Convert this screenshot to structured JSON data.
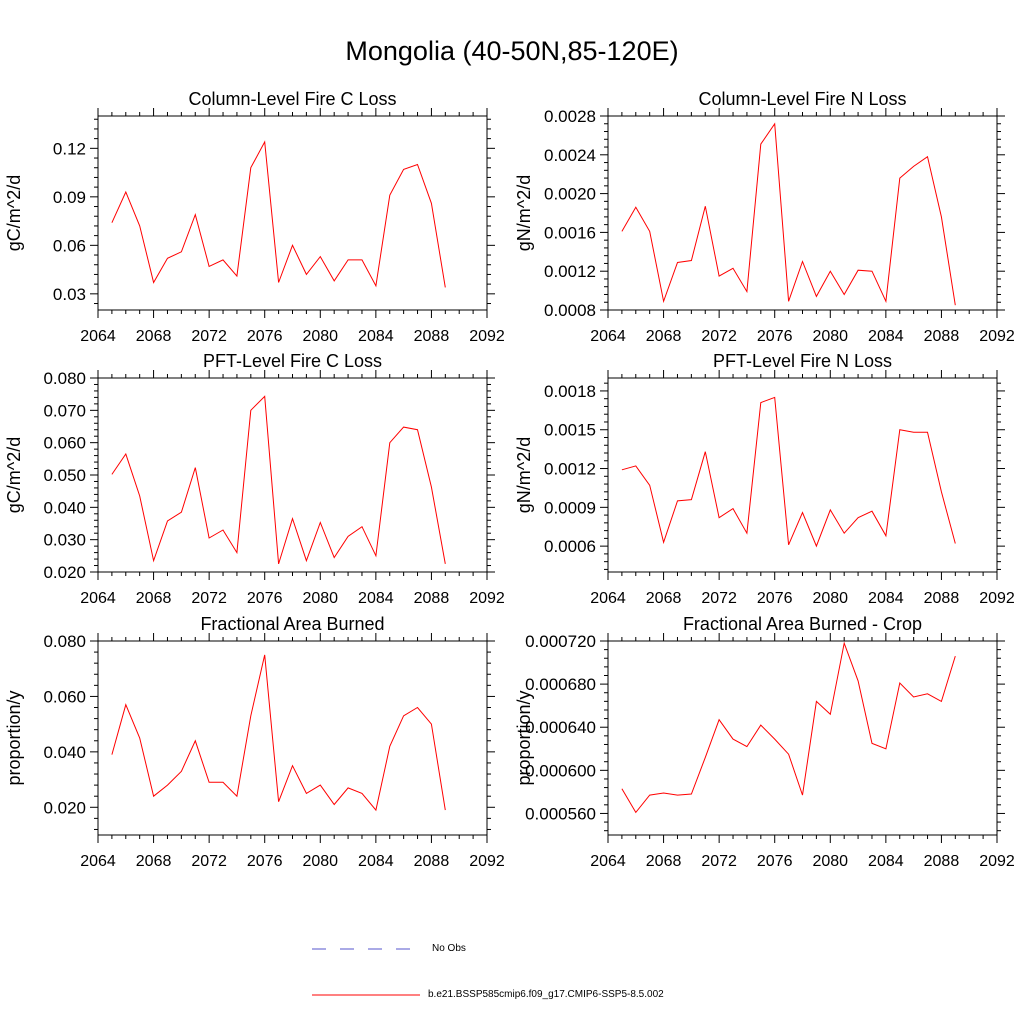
{
  "page_title": "Mongolia (40-50N,85-120E)",
  "legend": {
    "obs_label": "No Obs",
    "obs_color": "#5555cc",
    "model_label": "b.e21.BSSP585cmip6.f09_g17.CMIP6-SSP5-8.5.002",
    "model_color": "#ff0000"
  },
  "chart_data": [
    {
      "type": "line",
      "title": "Column-Level Fire C Loss",
      "xlabel": "",
      "ylabel": "gC/m^2/d",
      "xlim": [
        2064,
        2092
      ],
      "ylim": [
        0.02,
        0.14
      ],
      "xticks": [
        2064,
        2068,
        2072,
        2076,
        2080,
        2084,
        2088,
        2092
      ],
      "yticks": [
        "0.03",
        "0.06",
        "0.09",
        "0.12"
      ],
      "x": [
        2065,
        2066,
        2067,
        2068,
        2069,
        2070,
        2071,
        2072,
        2073,
        2074,
        2075,
        2076,
        2077,
        2078,
        2079,
        2080,
        2081,
        2082,
        2083,
        2084,
        2085,
        2086,
        2087,
        2088,
        2089
      ],
      "series": [
        {
          "name": "b.e21.BSSP585cmip6.f09_g17.CMIP6-SSP5-8.5.002",
          "values": [
            0.074,
            0.093,
            0.072,
            0.037,
            0.052,
            0.056,
            0.079,
            0.047,
            0.051,
            0.041,
            0.108,
            0.124,
            0.037,
            0.06,
            0.042,
            0.053,
            0.038,
            0.051,
            0.051,
            0.035,
            0.091,
            0.107,
            0.11,
            0.086,
            0.034
          ]
        }
      ]
    },
    {
      "type": "line",
      "title": "Column-Level Fire N Loss",
      "xlabel": "",
      "ylabel": "gN/m^2/d",
      "xlim": [
        2064,
        2092
      ],
      "ylim": [
        0.0008,
        0.0028
      ],
      "xticks": [
        2064,
        2068,
        2072,
        2076,
        2080,
        2084,
        2088,
        2092
      ],
      "yticks": [
        "0.0008",
        "0.0012",
        "0.0016",
        "0.0020",
        "0.0024",
        "0.0028"
      ],
      "x": [
        2065,
        2066,
        2067,
        2068,
        2069,
        2070,
        2071,
        2072,
        2073,
        2074,
        2075,
        2076,
        2077,
        2078,
        2079,
        2080,
        2081,
        2082,
        2083,
        2084,
        2085,
        2086,
        2087,
        2088,
        2089
      ],
      "series": [
        {
          "name": "b.e21.BSSP585cmip6.f09_g17.CMIP6-SSP5-8.5.002",
          "values": [
            0.00161,
            0.00186,
            0.00161,
            0.00089,
            0.00129,
            0.00131,
            0.00187,
            0.00115,
            0.00123,
            0.00099,
            0.00251,
            0.00272,
            0.00089,
            0.0013,
            0.00094,
            0.0012,
            0.00096,
            0.00121,
            0.0012,
            0.00089,
            0.00216,
            0.00228,
            0.00238,
            0.00176,
            0.00085
          ]
        }
      ]
    },
    {
      "type": "line",
      "title": "PFT-Level Fire C Loss",
      "xlabel": "",
      "ylabel": "gC/m^2/d",
      "xlim": [
        2064,
        2092
      ],
      "ylim": [
        0.02,
        0.08
      ],
      "xticks": [
        2064,
        2068,
        2072,
        2076,
        2080,
        2084,
        2088,
        2092
      ],
      "yticks": [
        "0.020",
        "0.030",
        "0.040",
        "0.050",
        "0.060",
        "0.070",
        "0.080"
      ],
      "x": [
        2065,
        2066,
        2067,
        2068,
        2069,
        2070,
        2071,
        2072,
        2073,
        2074,
        2075,
        2076,
        2077,
        2078,
        2079,
        2080,
        2081,
        2082,
        2083,
        2084,
        2085,
        2086,
        2087,
        2088,
        2089
      ],
      "series": [
        {
          "name": "b.e21.BSSP585cmip6.f09_g17.CMIP6-SSP5-8.5.002",
          "values": [
            0.0502,
            0.0565,
            0.0435,
            0.0235,
            0.0358,
            0.0385,
            0.0523,
            0.0305,
            0.033,
            0.026,
            0.07,
            0.0743,
            0.0225,
            0.0365,
            0.0235,
            0.0353,
            0.0245,
            0.031,
            0.034,
            0.025,
            0.06,
            0.0648,
            0.064,
            0.0463,
            0.0225
          ]
        }
      ]
    },
    {
      "type": "line",
      "title": "PFT-Level Fire N Loss",
      "xlabel": "",
      "ylabel": "gN/m^2/d",
      "xlim": [
        2064,
        2092
      ],
      "ylim": [
        0.0004,
        0.0019
      ],
      "xticks": [
        2064,
        2068,
        2072,
        2076,
        2080,
        2084,
        2088,
        2092
      ],
      "yticks": [
        "0.0006",
        "0.0009",
        "0.0012",
        "0.0015",
        "0.0018"
      ],
      "x": [
        2065,
        2066,
        2067,
        2068,
        2069,
        2070,
        2071,
        2072,
        2073,
        2074,
        2075,
        2076,
        2077,
        2078,
        2079,
        2080,
        2081,
        2082,
        2083,
        2084,
        2085,
        2086,
        2087,
        2088,
        2089
      ],
      "series": [
        {
          "name": "b.e21.BSSP585cmip6.f09_g17.CMIP6-SSP5-8.5.002",
          "values": [
            0.00119,
            0.00122,
            0.00107,
            0.00063,
            0.00095,
            0.00096,
            0.00133,
            0.00082,
            0.00089,
            0.0007,
            0.00171,
            0.00175,
            0.00061,
            0.00086,
            0.0006,
            0.00088,
            0.0007,
            0.00082,
            0.00087,
            0.00068,
            0.0015,
            0.00148,
            0.00148,
            0.00102,
            0.00062
          ]
        }
      ]
    },
    {
      "type": "line",
      "title": "Fractional Area Burned",
      "xlabel": "",
      "ylabel": "proportion/y",
      "xlim": [
        2064,
        2092
      ],
      "ylim": [
        0.01,
        0.08
      ],
      "xticks": [
        2064,
        2068,
        2072,
        2076,
        2080,
        2084,
        2088,
        2092
      ],
      "yticks": [
        "0.020",
        "0.040",
        "0.060",
        "0.080"
      ],
      "x": [
        2065,
        2066,
        2067,
        2068,
        2069,
        2070,
        2071,
        2072,
        2073,
        2074,
        2075,
        2076,
        2077,
        2078,
        2079,
        2080,
        2081,
        2082,
        2083,
        2084,
        2085,
        2086,
        2087,
        2088,
        2089
      ],
      "series": [
        {
          "name": "b.e21.BSSP585cmip6.f09_g17.CMIP6-SSP5-8.5.002",
          "values": [
            0.039,
            0.057,
            0.045,
            0.024,
            0.028,
            0.033,
            0.044,
            0.029,
            0.029,
            0.024,
            0.053,
            0.075,
            0.022,
            0.035,
            0.025,
            0.028,
            0.021,
            0.027,
            0.025,
            0.019,
            0.042,
            0.053,
            0.056,
            0.05,
            0.019
          ]
        }
      ]
    },
    {
      "type": "line",
      "title": "Fractional Area Burned - Crop",
      "xlabel": "",
      "ylabel": "proportion/y",
      "xlim": [
        2064,
        2092
      ],
      "ylim": [
        0.00054,
        0.00072
      ],
      "xticks": [
        2064,
        2068,
        2072,
        2076,
        2080,
        2084,
        2088,
        2092
      ],
      "yticks": [
        "0.000560",
        "0.000600",
        "0.000640",
        "0.000680",
        "0.000720"
      ],
      "x": [
        2065,
        2066,
        2067,
        2068,
        2069,
        2070,
        2071,
        2072,
        2073,
        2074,
        2075,
        2076,
        2077,
        2078,
        2079,
        2080,
        2081,
        2082,
        2083,
        2084,
        2085,
        2086,
        2087,
        2088,
        2089
      ],
      "series": [
        {
          "name": "b.e21.BSSP585cmip6.f09_g17.CMIP6-SSP5-8.5.002",
          "values": [
            0.000583,
            0.000561,
            0.000577,
            0.000579,
            0.000577,
            0.000578,
            0.000612,
            0.000647,
            0.000629,
            0.000622,
            0.000642,
            0.000629,
            0.000615,
            0.000577,
            0.000664,
            0.000652,
            0.000718,
            0.000683,
            0.000625,
            0.00062,
            0.000681,
            0.000668,
            0.000671,
            0.000664,
            0.000706
          ]
        }
      ]
    }
  ]
}
